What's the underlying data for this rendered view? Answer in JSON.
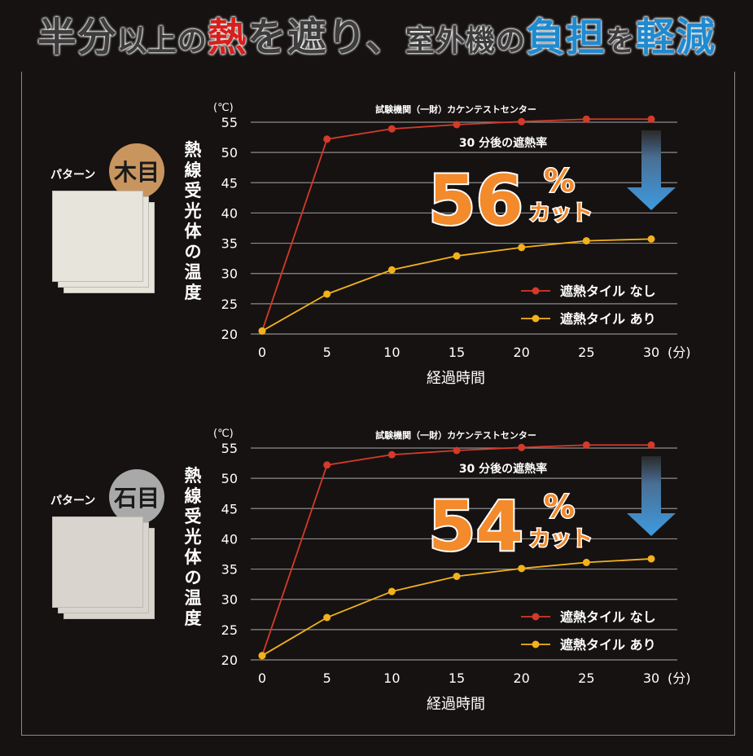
{
  "headline": {
    "part1": "半分",
    "part2": "以上の",
    "part3": "熱",
    "part4": "を遮り、",
    "part5": "室外機の",
    "part6": "負担",
    "part7": "を",
    "part8": "軽減",
    "colors": {
      "dark": "#3d3d3d",
      "red": "#d6201c",
      "blue": "#1f8ad0"
    }
  },
  "panels": [
    {
      "pattern_label": "パターン",
      "pattern_name": "木目",
      "badge_color": "#c9955f",
      "tile_color": "#e7e4dc",
      "vertical_label": [
        "熱",
        "線",
        "受",
        "光",
        "体",
        "の",
        "温",
        "度"
      ],
      "note": "30 分後の遮熱率",
      "big_value": "56",
      "big_pct": "%",
      "big_cut": "カット"
    },
    {
      "pattern_label": "パターン",
      "pattern_name": "石目",
      "badge_color": "#a9a9a9",
      "tile_color": "#d9d5ce",
      "vertical_label": [
        "熱",
        "線",
        "受",
        "光",
        "体",
        "の",
        "温",
        "度"
      ],
      "note": "30 分後の遮熱率",
      "big_value": "54",
      "big_pct": "%",
      "big_cut": "カット"
    }
  ],
  "chart_data": [
    {
      "type": "line",
      "title": "試験機関（一財）カケンテストセンター",
      "y_unit": "(℃)",
      "x_unit": "(分)",
      "xlabel": "経過時間",
      "x": [
        0,
        5,
        10,
        15,
        20,
        25,
        30
      ],
      "ylim": [
        20,
        55
      ],
      "yticks": [
        20,
        25,
        30,
        35,
        40,
        45,
        50,
        55
      ],
      "grid": true,
      "legend_position": "bottom-right",
      "series": [
        {
          "name": "遮熱タイル なし",
          "color": "#d33a2a",
          "values": [
            20.5,
            52.2,
            53.9,
            54.6,
            55.1,
            55.5,
            55.5
          ]
        },
        {
          "name": "遮熱タイル あり",
          "color": "#f2b21b",
          "values": [
            20.5,
            26.6,
            30.6,
            32.9,
            34.3,
            35.4,
            35.7
          ]
        }
      ]
    },
    {
      "type": "line",
      "title": "試験機関（一財）カケンテストセンター",
      "y_unit": "(℃)",
      "x_unit": "(分)",
      "xlabel": "経過時間",
      "x": [
        0,
        5,
        10,
        15,
        20,
        25,
        30
      ],
      "ylim": [
        20,
        55
      ],
      "yticks": [
        20,
        25,
        30,
        35,
        40,
        45,
        50,
        55
      ],
      "grid": true,
      "legend_position": "bottom-right",
      "series": [
        {
          "name": "遮熱タイル なし",
          "color": "#d33a2a",
          "values": [
            20.7,
            52.2,
            53.9,
            54.6,
            55.1,
            55.5,
            55.5
          ]
        },
        {
          "name": "遮熱タイル あり",
          "color": "#f2b21b",
          "values": [
            20.7,
            27.0,
            31.3,
            33.8,
            35.1,
            36.1,
            36.7
          ]
        }
      ]
    }
  ]
}
